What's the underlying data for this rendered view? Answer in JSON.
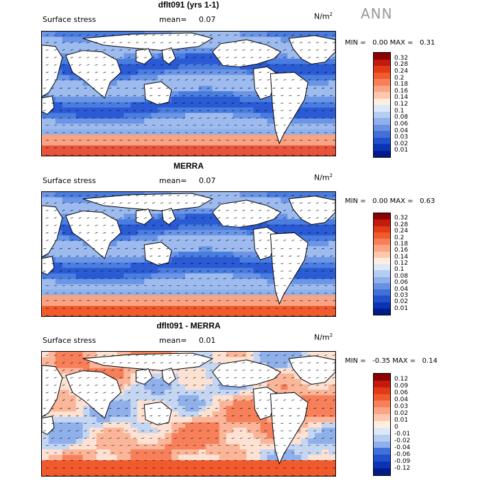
{
  "season": "ANN",
  "panels": [
    {
      "title": "dflt091 (yrs 1-1)",
      "field": "Surface stress",
      "mean_label": "mean=",
      "mean": "0.07",
      "units": "N/m",
      "units_exp": "2",
      "min_label": "MIN =",
      "min": "0.00",
      "max_label": "MAX =",
      "max": "0.31",
      "colorbar_ticks": [
        "0.32",
        "0.28",
        "0.24",
        "0.2",
        "0.18",
        "0.16",
        "0.14",
        "0.12",
        "0.1",
        "0.08",
        "0.06",
        "0.04",
        "0.03",
        "0.02",
        "0.01"
      ],
      "colorbar_colors": [
        "#8b0000",
        "#c21a0d",
        "#e03a17",
        "#f05a2c",
        "#f7805a",
        "#fba584",
        "#fdc8ae",
        "#ffeedd",
        "#dce8f8",
        "#b6cdf2",
        "#8fb0ea",
        "#6891e2",
        "#4070d8",
        "#2050cc",
        "#0a34b4",
        "#001a8c"
      ],
      "pattern": "model"
    },
    {
      "title": "MERRA",
      "field": "Surface stress",
      "mean_label": "mean=",
      "mean": "0.07",
      "units": "N/m",
      "units_exp": "2",
      "min_label": "MIN =",
      "min": "0.00",
      "max_label": "MAX =",
      "max": "0.63",
      "colorbar_ticks": [
        "0.32",
        "0.28",
        "0.24",
        "0.2",
        "0.18",
        "0.16",
        "0.14",
        "0.12",
        "0.1",
        "0.08",
        "0.06",
        "0.04",
        "0.03",
        "0.02",
        "0.01"
      ],
      "colorbar_colors": [
        "#8b0000",
        "#c21a0d",
        "#e03a17",
        "#f05a2c",
        "#f7805a",
        "#fba584",
        "#fdc8ae",
        "#ffeedd",
        "#dce8f8",
        "#b6cdf2",
        "#8fb0ea",
        "#6891e2",
        "#4070d8",
        "#2050cc",
        "#0a34b4",
        "#001a8c"
      ],
      "pattern": "obs"
    },
    {
      "title": "dflt091 - MERRA",
      "field": "Surface stress",
      "mean_label": "mean=",
      "mean": "0.01",
      "units": "N/m",
      "units_exp": "2",
      "min_label": "MIN =",
      "min": "-0.35",
      "max_label": "MAX =",
      "max": "0.14",
      "colorbar_ticks": [
        "0.12",
        "0.09",
        "0.06",
        "0.04",
        "0.03",
        "0.02",
        "0.01",
        "0",
        "-0.01",
        "-0.02",
        "-0.04",
        "-0.06",
        "-0.09",
        "-0.12"
      ],
      "colorbar_colors": [
        "#8b0000",
        "#c21a0d",
        "#e03a17",
        "#f05a2c",
        "#f7805a",
        "#fba584",
        "#fdc8ae",
        "#ffeedd",
        "#dce8f8",
        "#b6cdf2",
        "#8fb0ea",
        "#4070d8",
        "#2050cc",
        "#0a34b4",
        "#001a8c"
      ],
      "pattern": "diff"
    }
  ]
}
